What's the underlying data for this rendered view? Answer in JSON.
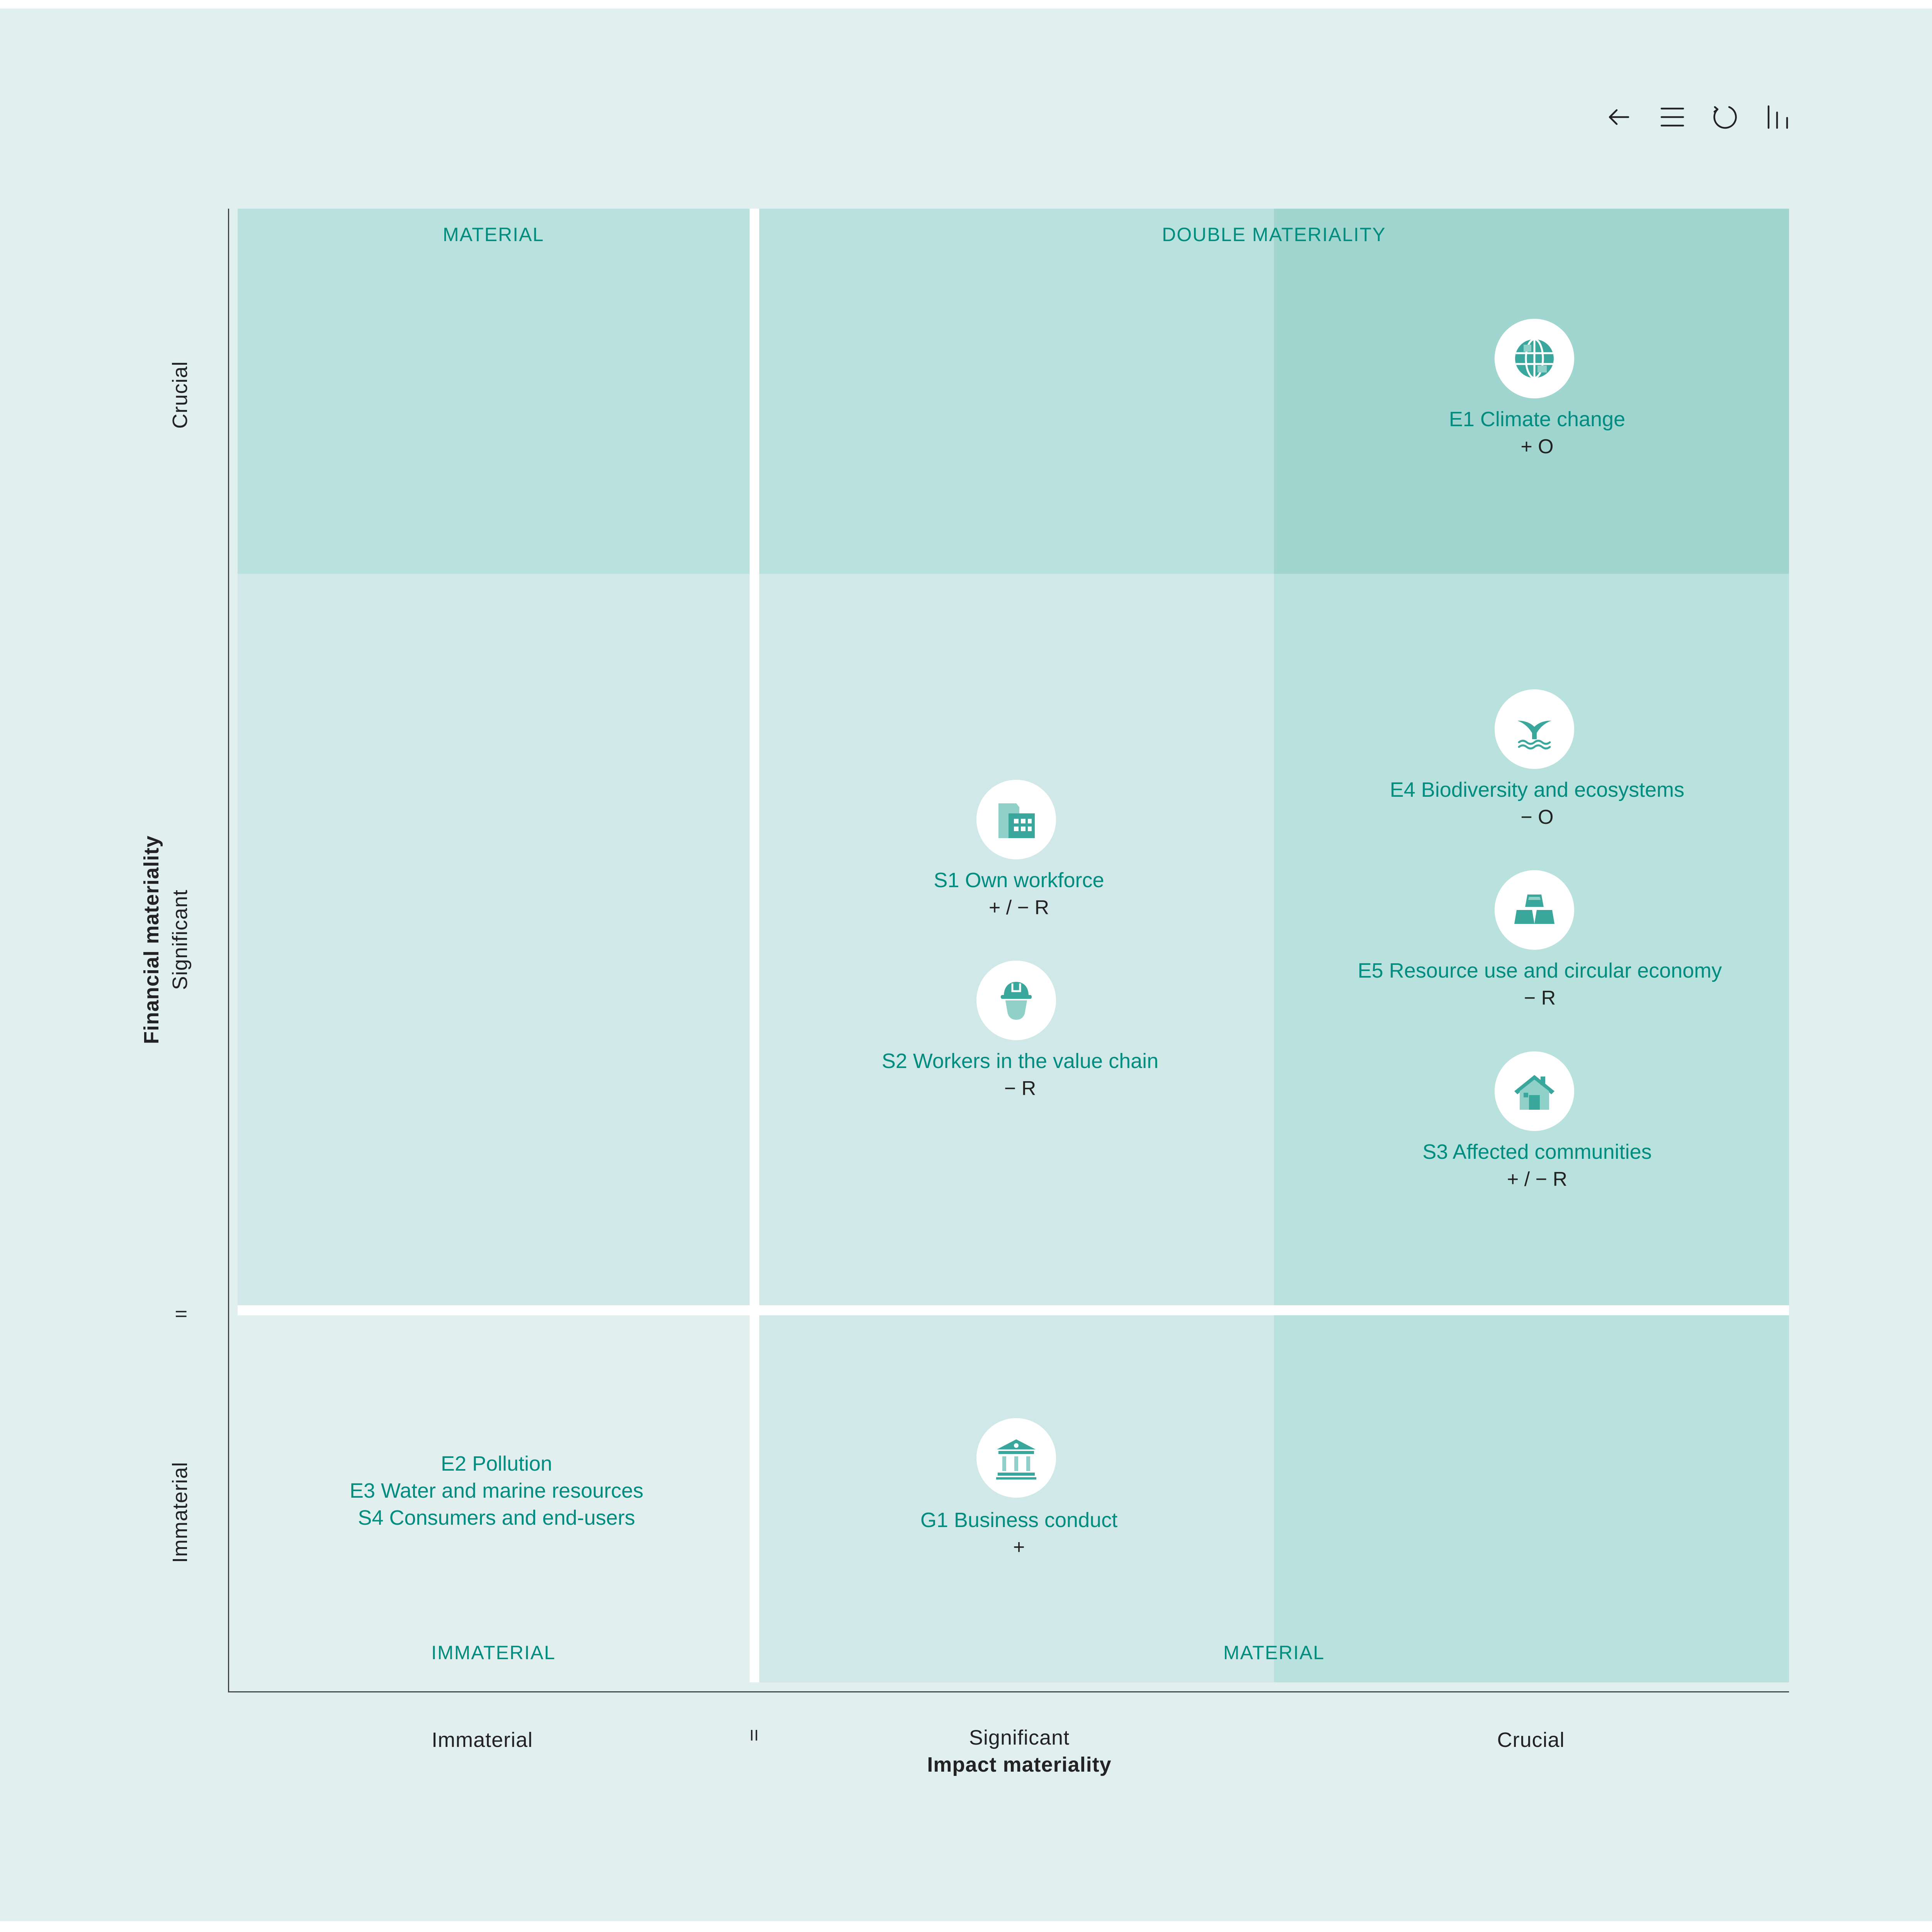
{
  "toolbar": {
    "back_icon": "arrow-left-icon",
    "menu_icon": "hamburger-menu-icon",
    "reset_icon": "circular-arrow-icon",
    "view_icon": "bar-view-icon"
  },
  "colors": {
    "background": "#e1f0ef",
    "light": "#d0e9e8",
    "medium": "#b9e1dd",
    "dark": "#a1d5d0",
    "accent_text": "#008c7e",
    "icon": "#3aa79c",
    "divider": "#ffffff"
  },
  "chart_data": {
    "type": "scatter",
    "xlabel": "Impact materiality",
    "ylabel": "Financial materiality",
    "x_levels": [
      "Immaterial",
      "Significant",
      "Crucial"
    ],
    "y_levels": [
      "Immaterial",
      "Significant",
      "Crucial"
    ],
    "threshold_mark": "II",
    "quadrant_labels": {
      "top_left": "MATERIAL",
      "top_right": "DOUBLE MATERIALITY",
      "bottom_left": "IMMATERIAL",
      "bottom_right": "MATERIAL"
    },
    "points": [
      {
        "label": "E1 Climate change",
        "flags": "+ O",
        "x": "Crucial",
        "y": "Crucial",
        "icon": "globe-icon"
      },
      {
        "label": "E4 Biodiversity and ecosystems",
        "flags": "− O",
        "x": "Crucial",
        "y": "Significant",
        "icon": "whale-tail-icon"
      },
      {
        "label": "E5 Resource use and circular economy",
        "flags": "− R",
        "x": "Crucial",
        "y": "Significant",
        "icon": "gold-bars-icon"
      },
      {
        "label": "S3 Affected communities",
        "flags": "+ / − R",
        "x": "Crucial",
        "y": "Significant",
        "icon": "house-icon"
      },
      {
        "label": "S1 Own workforce",
        "flags": "+ / − R",
        "x": "Significant",
        "y": "Significant",
        "icon": "office-building-icon"
      },
      {
        "label": "S2 Workers in the value chain",
        "flags": "− R",
        "x": "Significant",
        "y": "Significant",
        "icon": "worker-helmet-icon"
      },
      {
        "label": "G1 Business conduct",
        "flags": "+",
        "x": "Significant",
        "y": "Immaterial",
        "icon": "institution-icon"
      }
    ],
    "immaterial_group": [
      "E2 Pollution",
      "E3 Water and marine resources",
      "S4 Consumers and end-users"
    ]
  }
}
